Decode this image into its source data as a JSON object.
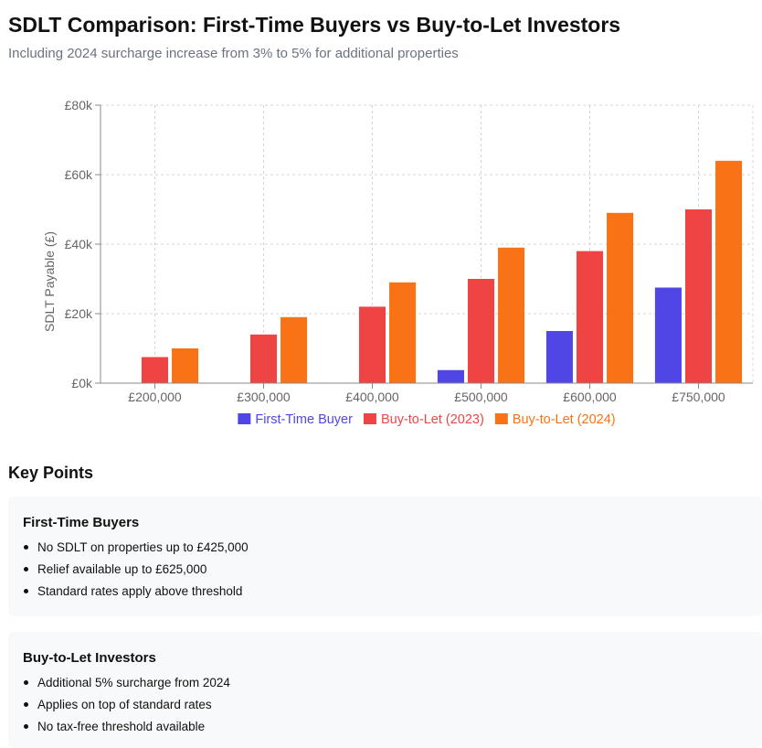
{
  "header": {
    "title": "SDLT Comparison: First-Time Buyers vs Buy-to-Let Investors",
    "subtitle": "Including 2024 surcharge increase from 3% to 5% for additional properties"
  },
  "chart_data": {
    "type": "bar",
    "categories": [
      "£200,000",
      "£300,000",
      "£400,000",
      "£500,000",
      "£600,000",
      "£750,000"
    ],
    "series": [
      {
        "name": "First-Time Buyer",
        "color": "#4f46e5",
        "values": [
          0,
          0,
          0,
          3750,
          15000,
          27500
        ]
      },
      {
        "name": "Buy-to-Let (2023)",
        "color": "#ef4444",
        "values": [
          7500,
          14000,
          22000,
          30000,
          38000,
          50000
        ]
      },
      {
        "name": "Buy-to-Let (2024)",
        "color": "#f97316",
        "values": [
          10000,
          19000,
          29000,
          39000,
          49000,
          64000
        ]
      }
    ],
    "ylabel": "SDLT Payable (£)",
    "ylim": [
      0,
      80000
    ],
    "yticks": [
      0,
      20000,
      40000,
      60000,
      80000
    ],
    "ytick_labels": [
      "£0k",
      "£20k",
      "£40k",
      "£60k",
      "£80k"
    ],
    "grid": true,
    "legend": "bottom"
  },
  "key_points": {
    "heading": "Key Points",
    "cards": [
      {
        "title": "First-Time Buyers",
        "items": [
          "No SDLT on properties up to £425,000",
          "Relief available up to £625,000",
          "Standard rates apply above threshold"
        ]
      },
      {
        "title": "Buy-to-Let Investors",
        "items": [
          "Additional 5% surcharge from 2024",
          "Applies on top of standard rates",
          "No tax-free threshold available"
        ]
      }
    ]
  }
}
